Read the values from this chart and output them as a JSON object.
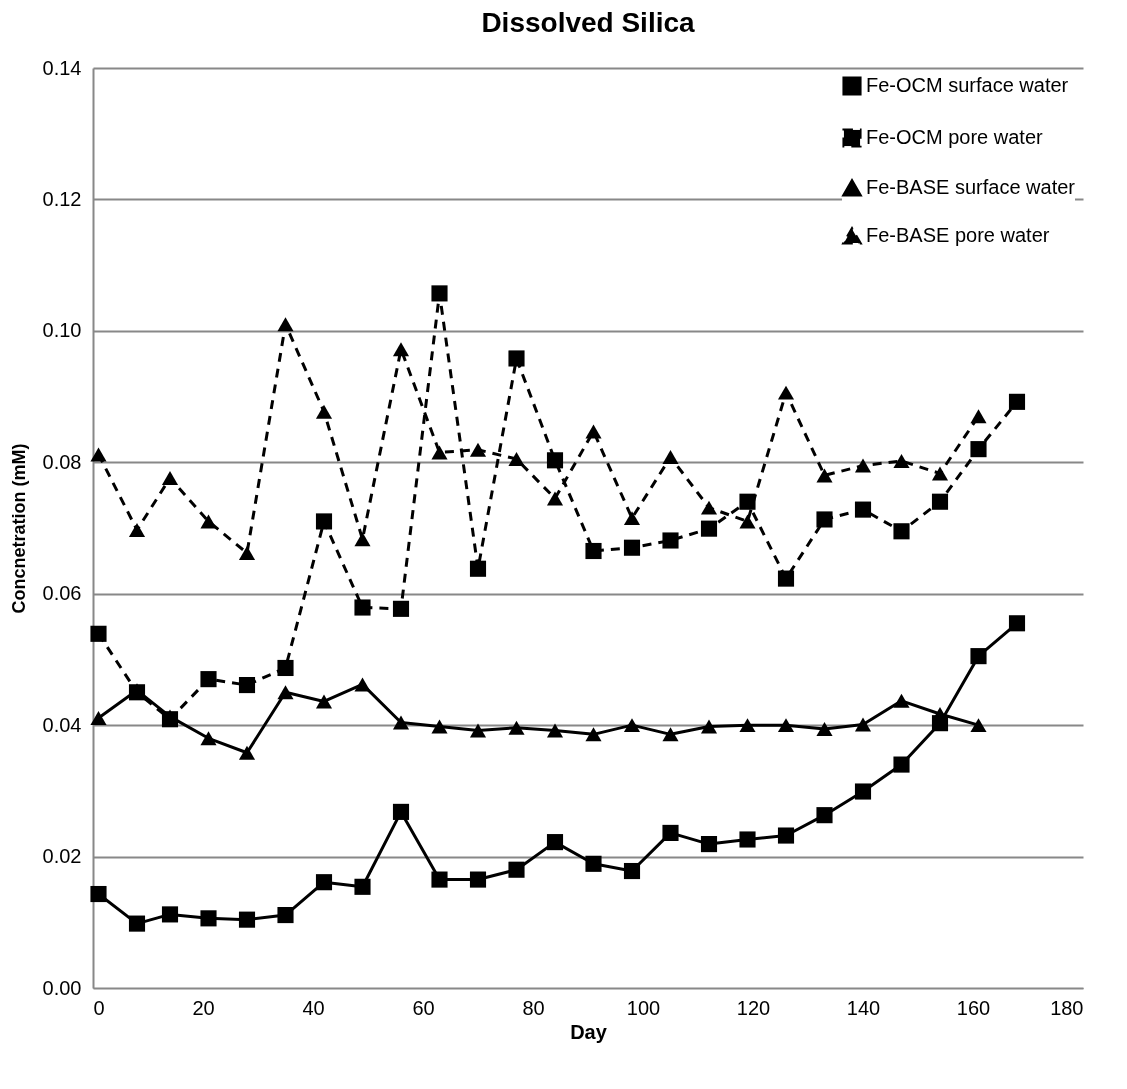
{
  "chart_data": {
    "type": "line",
    "title": "Dissolved Silica",
    "xlabel": "Day",
    "ylabel": "Concnetration (mM)",
    "xlim": [
      0,
      180
    ],
    "xticks": [
      0,
      20,
      40,
      60,
      80,
      100,
      120,
      140,
      160,
      180
    ],
    "ylim": [
      0,
      0.14
    ],
    "yticks": [
      {
        "value": 0,
        "label": "0.00"
      },
      {
        "value": 0.02,
        "label": "0.02"
      },
      {
        "value": 0.04,
        "label": "0.04"
      },
      {
        "value": 0.06,
        "label": "0.06"
      },
      {
        "value": 0.08,
        "label": "0.08"
      },
      {
        "value": 0.1,
        "label": "0.10"
      },
      {
        "value": 0.12,
        "label": "0.12"
      },
      {
        "value": 0.14,
        "label": "0.14"
      }
    ],
    "grid": "y",
    "legend": "top right",
    "x": [
      1,
      8,
      14,
      21,
      28,
      35,
      42,
      49,
      56,
      63,
      70,
      77,
      84,
      91,
      98,
      105,
      112,
      119,
      126,
      133,
      140,
      147,
      154,
      161,
      168
    ],
    "series": [
      {
        "name": "Fe-OCM surface water",
        "color": "#000000",
        "marker": "square",
        "line_style": "solid",
        "values": [
          0.0143,
          0.0098,
          0.0112,
          0.0106,
          0.0104,
          0.0111,
          0.0161,
          0.0154,
          0.0268,
          0.0165,
          0.0165,
          0.018,
          0.0222,
          0.0189,
          0.0178,
          0.0236,
          0.0219,
          0.0226,
          0.0232,
          0.0263,
          0.0299,
          0.034,
          0.0403,
          0.0505,
          0.0555
        ]
      },
      {
        "name": "Fe-OCM pore water",
        "color": "#000000",
        "marker": "square",
        "line_style": "dashed",
        "values": [
          0.0539,
          0.045,
          0.0409,
          0.047,
          0.0461,
          0.0487,
          0.071,
          0.0579,
          0.0577,
          0.1057,
          0.0638,
          0.0958,
          0.0803,
          0.0665,
          0.067,
          0.0681,
          0.0699,
          0.074,
          0.0623,
          0.0713,
          0.0728,
          0.0695,
          0.074,
          0.082,
          0.0892
        ]
      },
      {
        "name": "Fe-BASE surface water",
        "color": "#000000",
        "marker": "triangle",
        "line_style": "solid",
        "values": [
          0.0411,
          0.0453,
          0.0413,
          0.038,
          0.0358,
          0.045,
          0.0436,
          0.0462,
          0.0404,
          0.0398,
          0.0392,
          0.0396,
          0.0392,
          0.0386,
          0.04,
          0.0386,
          0.0398,
          0.04,
          0.04,
          0.0394,
          0.0401,
          0.0437,
          0.0417,
          0.04,
          null
        ]
      },
      {
        "name": "Fe-BASE pore water",
        "color": "#000000",
        "marker": "triangle",
        "line_style": "dashed",
        "values": [
          0.0812,
          0.0697,
          0.0776,
          0.071,
          0.0662,
          0.101,
          0.0877,
          0.0683,
          0.0972,
          0.0815,
          0.0819,
          0.0805,
          0.0745,
          0.0847,
          0.0715,
          0.0808,
          0.0731,
          0.071,
          0.0906,
          0.078,
          0.0795,
          0.0802,
          0.0783,
          0.087,
          null
        ]
      }
    ]
  }
}
